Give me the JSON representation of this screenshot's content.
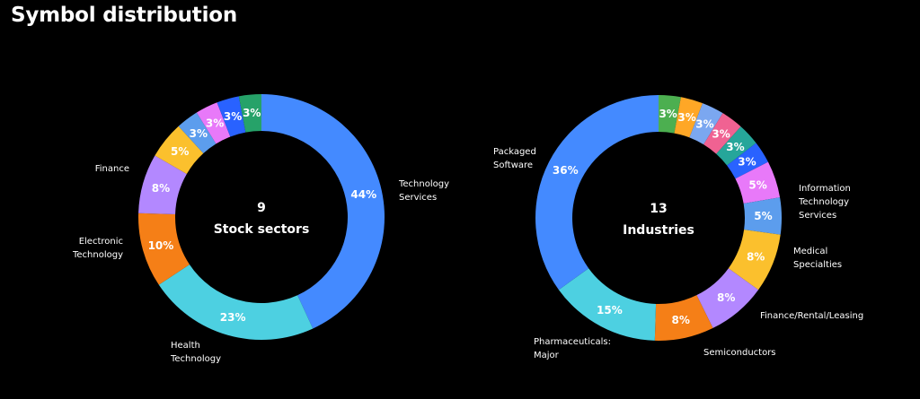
{
  "page": {
    "title": "Symbol distribution"
  },
  "chart_data": [
    {
      "type": "pie",
      "donut": true,
      "center_count": "9",
      "center_label": "Stock sectors",
      "slices": [
        {
          "name": "Technology Services",
          "lines": [
            "Technology",
            "Services"
          ],
          "value": 44,
          "label": "44%",
          "color": "#448aff"
        },
        {
          "name": "Health Technology",
          "lines": [
            "Health",
            "Technology"
          ],
          "value": 23,
          "label": "23%",
          "color": "#4dd0e1"
        },
        {
          "name": "Electronic Technology",
          "lines": [
            "Electronic",
            "Technology"
          ],
          "value": 10,
          "label": "10%",
          "color": "#f57f17"
        },
        {
          "name": "Finance",
          "lines": [
            "Finance"
          ],
          "value": 8,
          "label": "8%",
          "color": "#b388ff"
        },
        {
          "name": "",
          "lines": [],
          "value": 5,
          "label": "5%",
          "color": "#fbc02d"
        },
        {
          "name": "",
          "lines": [],
          "value": 3,
          "label": "3%",
          "color": "#5c9ded"
        },
        {
          "name": "",
          "lines": [],
          "value": 3,
          "label": "3%",
          "color": "#e879f9"
        },
        {
          "name": "",
          "lines": [],
          "value": 3,
          "label": "3%",
          "color": "#2962ff"
        },
        {
          "name": "",
          "lines": [],
          "value": 3,
          "label": "3%",
          "color": "#26a269"
        }
      ]
    },
    {
      "type": "pie",
      "donut": true,
      "center_count": "13",
      "center_label": "Industries",
      "slices": [
        {
          "name": "",
          "lines": [],
          "value": 3,
          "label": "3%",
          "color": "#4caf50"
        },
        {
          "name": "",
          "lines": [],
          "value": 3,
          "label": "3%",
          "color": "#ffa726"
        },
        {
          "name": "",
          "lines": [],
          "value": 3,
          "label": "3%",
          "color": "#7ba7f0"
        },
        {
          "name": "",
          "lines": [],
          "value": 3,
          "label": "3%",
          "color": "#f06292"
        },
        {
          "name": "",
          "lines": [],
          "value": 3,
          "label": "3%",
          "color": "#26a69a"
        },
        {
          "name": "",
          "lines": [],
          "value": 3,
          "label": "3%",
          "color": "#2962ff"
        },
        {
          "name": "",
          "lines": [],
          "value": 5,
          "label": "5%",
          "color": "#e879f9"
        },
        {
          "name": "Information Technology Services",
          "lines": [
            "Information",
            "Technology",
            "Services"
          ],
          "value": 5,
          "label": "5%",
          "color": "#5c9ded"
        },
        {
          "name": "Medical Specialties",
          "lines": [
            "Medical",
            "Specialties"
          ],
          "value": 8,
          "label": "8%",
          "color": "#fbc02d"
        },
        {
          "name": "Finance/Rental/Leasing",
          "lines": [
            "Finance/Rental/Leasing"
          ],
          "value": 8,
          "label": "8%",
          "color": "#b388ff"
        },
        {
          "name": "Semiconductors",
          "lines": [
            "Semiconductors"
          ],
          "value": 8,
          "label": "8%",
          "color": "#f57f17"
        },
        {
          "name": "Pharmaceuticals: Major",
          "lines": [
            "Pharmaceuticals:",
            "Major"
          ],
          "value": 15,
          "label": "15%",
          "color": "#4dd0e1"
        },
        {
          "name": "Packaged Software",
          "lines": [
            "Packaged",
            "Software"
          ],
          "value": 36,
          "label": "36%",
          "color": "#448aff"
        }
      ]
    }
  ]
}
